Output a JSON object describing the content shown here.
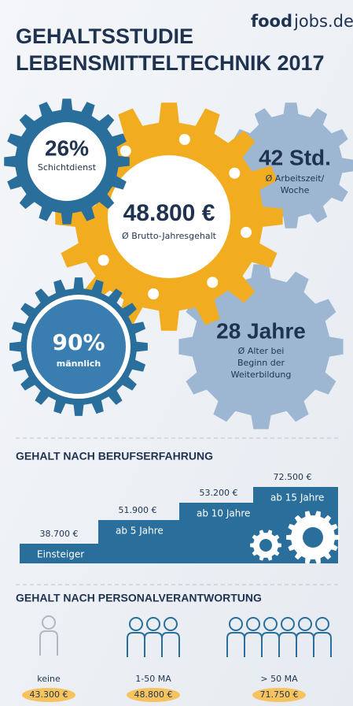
{
  "logo": {
    "bold": "food",
    "rest": "jobs.de"
  },
  "title": [
    "GEHALTSSTUDIE",
    "LEBENSMITTELTECHNIK 2017"
  ],
  "gears": [
    {
      "value": "26%",
      "label": "Schichtdienst"
    },
    {
      "value": "48.800 €",
      "label": "Ø Brutto-Jahresgehalt"
    },
    {
      "value": "42 Std.",
      "label": [
        "Ø Arbeitszeit/",
        "Woche"
      ]
    },
    {
      "value": "28 Jahre",
      "label": [
        "Ø Alter bei",
        "Beginn der",
        "Weiterbildung"
      ]
    },
    {
      "value": "90%",
      "label": "männlich"
    }
  ],
  "experience": {
    "title": "GEHALT NACH BERUFSERFAHRUNG",
    "steps": [
      {
        "label": "Einsteiger",
        "amount": "38.700 €"
      },
      {
        "label": "ab 5 Jahre",
        "amount": "51.900 €"
      },
      {
        "label": "ab 10 Jahre",
        "amount": "53.200 €"
      },
      {
        "label": "ab 15 Jahre",
        "amount": "72.500 €"
      }
    ]
  },
  "responsibility": {
    "title": "GEHALT NACH PERSONALVERANTWORTUNG",
    "groups": [
      {
        "label": "keine",
        "amount": "43.300 €"
      },
      {
        "label": "1-50 MA",
        "amount": "48.800 €"
      },
      {
        "label": "> 50 MA",
        "amount": "71.750 €"
      }
    ]
  }
}
